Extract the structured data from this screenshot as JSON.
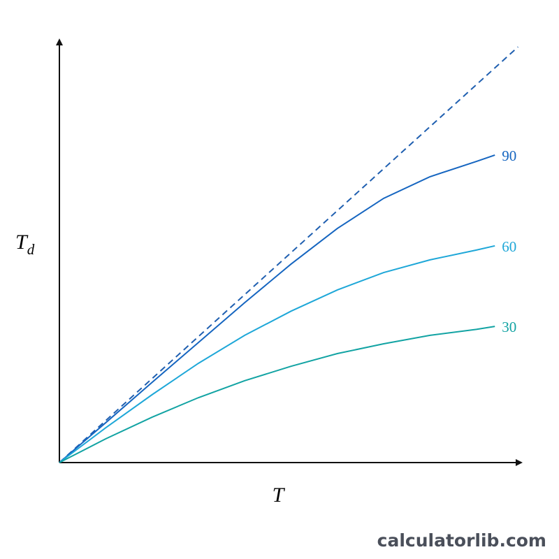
{
  "chart_data": {
    "type": "line",
    "xlabel": "T",
    "ylabel": "T",
    "ylabel_sub": "d",
    "xlim": [
      0,
      100
    ],
    "ylim": [
      0,
      100
    ],
    "x": [
      0,
      10,
      20,
      30,
      40,
      50,
      60,
      70,
      80,
      90,
      94
    ],
    "series": [
      {
        "name": "90",
        "color": "#1565c0",
        "values": [
          0,
          9.4,
          18.9,
          28.3,
          37.7,
          46.8,
          55.2,
          62.3,
          67.4,
          71.0,
          72.5
        ]
      },
      {
        "name": "60",
        "color": "#1ea7d8",
        "values": [
          0,
          8.2,
          16.0,
          23.4,
          30.0,
          35.7,
          40.7,
          44.8,
          47.8,
          50.1,
          51.1
        ]
      },
      {
        "name": "30",
        "color": "#12a3a3",
        "values": [
          0,
          5.6,
          10.7,
          15.3,
          19.3,
          22.7,
          25.7,
          28.0,
          30.0,
          31.4,
          32.1
        ]
      }
    ],
    "reference": {
      "x": [
        0,
        99
      ],
      "values": [
        0,
        98
      ],
      "color": "#1f5fb0",
      "dashed": true
    },
    "watermark": "calculatorlib.com"
  }
}
